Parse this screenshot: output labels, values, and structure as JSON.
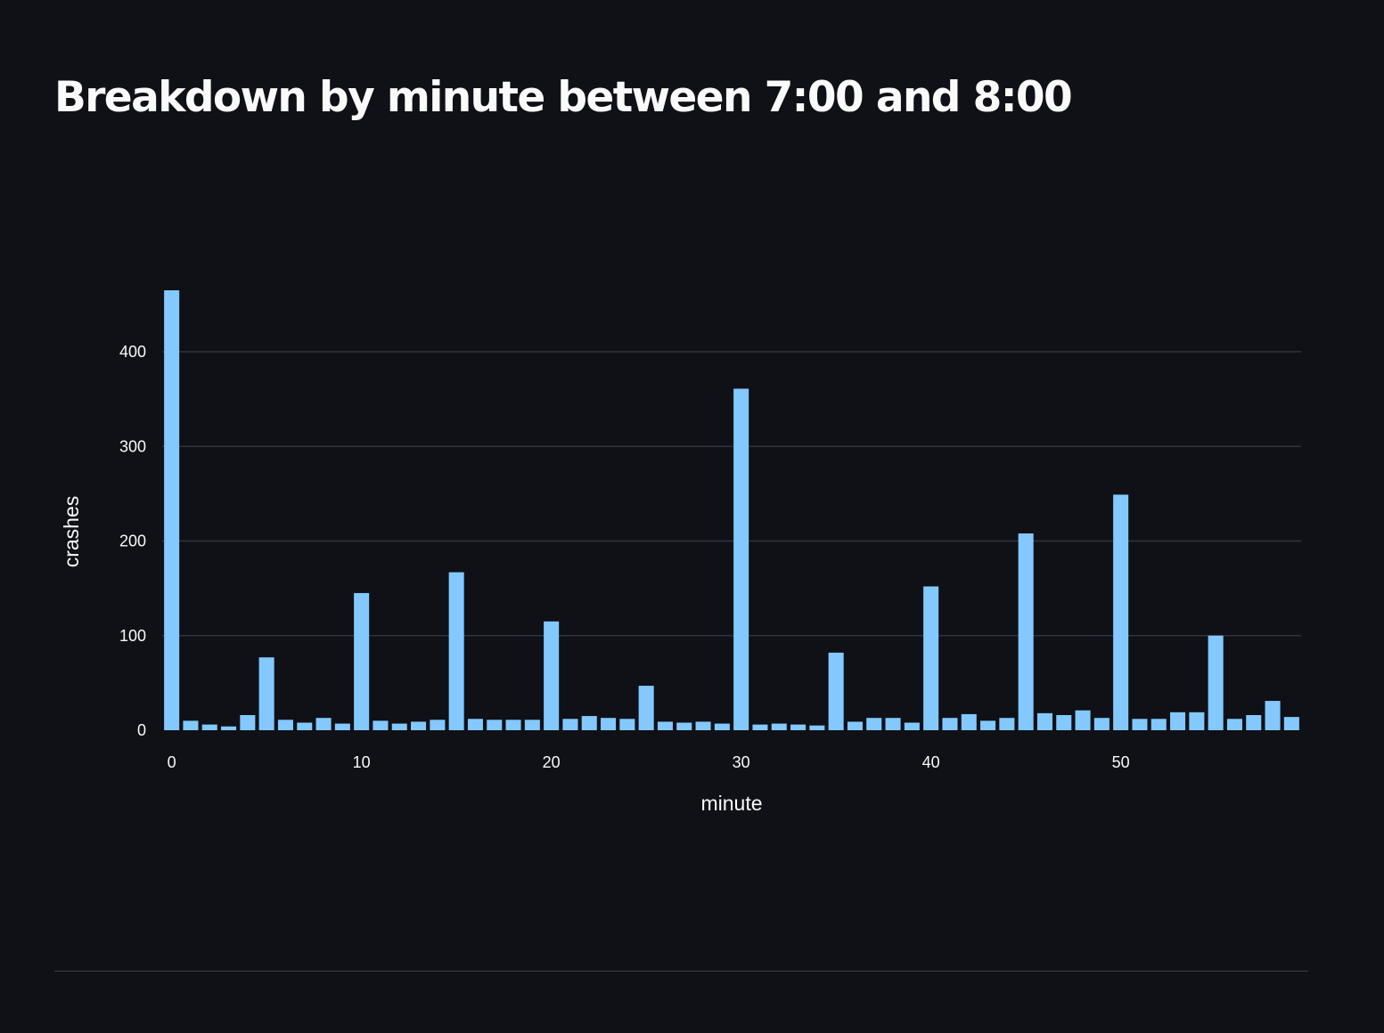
{
  "page": {
    "title": "Breakdown by minute between 7:00 and 8:00"
  },
  "chart_data": {
    "type": "bar",
    "title": "Breakdown by minute between 7:00 and 8:00",
    "xlabel": "minute",
    "ylabel": "crashes",
    "xlim": [
      -0.5,
      59.5
    ],
    "ylim": [
      0,
      465
    ],
    "x_ticks": [
      0,
      10,
      20,
      30,
      40,
      50
    ],
    "y_ticks": [
      0,
      100,
      200,
      300,
      400
    ],
    "grid": true,
    "bar_color": "#83c9ff",
    "x": [
      0,
      1,
      2,
      3,
      4,
      5,
      6,
      7,
      8,
      9,
      10,
      11,
      12,
      13,
      14,
      15,
      16,
      17,
      18,
      19,
      20,
      21,
      22,
      23,
      24,
      25,
      26,
      27,
      28,
      29,
      30,
      31,
      32,
      33,
      34,
      35,
      36,
      37,
      38,
      39,
      40,
      41,
      42,
      43,
      44,
      45,
      46,
      47,
      48,
      49,
      50,
      51,
      52,
      53,
      54,
      55,
      56,
      57,
      58,
      59
    ],
    "values": [
      465,
      10,
      6,
      4,
      16,
      77,
      11,
      8,
      13,
      7,
      145,
      10,
      7,
      9,
      11,
      167,
      12,
      11,
      11,
      11,
      115,
      12,
      15,
      13,
      12,
      47,
      9,
      8,
      9,
      7,
      361,
      6,
      7,
      6,
      5,
      82,
      9,
      13,
      13,
      8,
      152,
      13,
      17,
      10,
      13,
      208,
      18,
      16,
      21,
      13,
      249,
      12,
      12,
      19,
      19,
      100,
      12,
      16,
      31,
      14
    ]
  },
  "colors": {
    "background": "#0f1117",
    "bar": "#83c9ff",
    "grid": "#31333f",
    "text": "#fafafa"
  }
}
